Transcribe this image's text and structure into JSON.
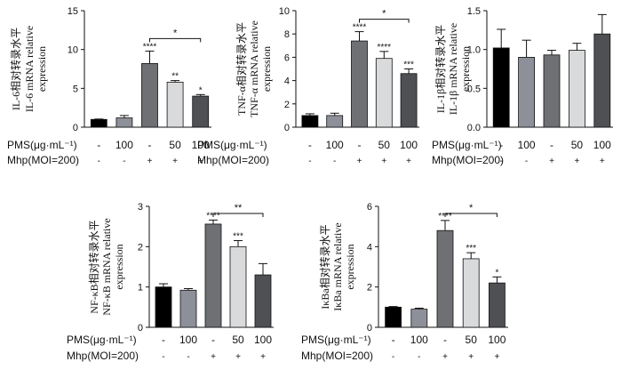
{
  "chart_data": [
    {
      "id": "il6",
      "type": "bar",
      "ylabel_zh": "IL-6相对转录水平",
      "ylabel_en1": "IL-6 mRNA relative",
      "ylabel_en2": "expression",
      "ylim": [
        0,
        15
      ],
      "yticks": [
        0,
        5,
        10,
        15
      ],
      "values": [
        1.0,
        1.2,
        8.2,
        5.8,
        4.0
      ],
      "errors": [
        0.05,
        0.3,
        1.6,
        0.2,
        0.2
      ],
      "sig": [
        "",
        "",
        "****",
        "**",
        "*"
      ],
      "bracket": {
        "from": 2,
        "to": 4,
        "label": "*"
      },
      "row_labels": [
        "PMS(μg·mL⁻¹)",
        "Mhp(MOI=200)"
      ]
    },
    {
      "id": "tnfa",
      "type": "bar",
      "ylabel_zh": "TNF-α相对转录水平",
      "ylabel_en1": "TNF-α mRNA relative",
      "ylabel_en2": "expression",
      "ylim": [
        0,
        10
      ],
      "yticks": [
        0,
        2,
        4,
        6,
        8,
        10
      ],
      "values": [
        1.0,
        1.0,
        7.4,
        5.9,
        4.6
      ],
      "errors": [
        0.15,
        0.2,
        0.8,
        0.6,
        0.4
      ],
      "sig": [
        "",
        "",
        "****",
        "****",
        "***"
      ],
      "bracket": {
        "from": 2,
        "to": 4,
        "label": "*"
      },
      "row_labels": [
        "PMS(μg·mL⁻¹)",
        "Mhp(MOI=200)"
      ]
    },
    {
      "id": "il1b",
      "type": "bar",
      "ylabel_zh": "IL-1β相对转录水平",
      "ylabel_en1": "IL-1β mRNA relative",
      "ylabel_en2": "expression",
      "ylim": [
        0,
        1.5
      ],
      "yticks": [
        0.0,
        0.5,
        1.0,
        1.5
      ],
      "tick_decimals": 1,
      "values": [
        1.02,
        0.9,
        0.93,
        0.99,
        1.2
      ],
      "errors": [
        0.24,
        0.22,
        0.06,
        0.09,
        0.25
      ],
      "sig": [
        "",
        "",
        "",
        "",
        ""
      ],
      "bracket": null,
      "row_labels": [
        "PMS(μg·mL⁻¹)",
        "Mhp(MOI=200)"
      ]
    },
    {
      "id": "nfkb",
      "type": "bar",
      "ylabel_zh": "NF-κB相对转录水平",
      "ylabel_en1": "NF-κB mRNA relative",
      "ylabel_en2": "expression",
      "ylim": [
        0,
        3
      ],
      "yticks": [
        0,
        1,
        2,
        3
      ],
      "values": [
        1.0,
        0.92,
        2.56,
        2.0,
        1.3
      ],
      "errors": [
        0.08,
        0.04,
        0.1,
        0.15,
        0.28
      ],
      "sig": [
        "",
        "",
        "****",
        "***",
        ""
      ],
      "bracket": {
        "from": 2,
        "to": 4,
        "label": "**"
      },
      "row_labels": [
        "PMS(μg·mL⁻¹)",
        "Mhp(MOI=200)"
      ]
    },
    {
      "id": "ikba",
      "type": "bar",
      "ylabel_zh": "IκBa相对转录水平",
      "ylabel_en1": "IκBa mRNA relative",
      "ylabel_en2": "expression",
      "ylim": [
        0,
        6
      ],
      "yticks": [
        0,
        2,
        4,
        6
      ],
      "values": [
        1.0,
        0.9,
        4.8,
        3.4,
        2.2
      ],
      "errors": [
        0.03,
        0.05,
        0.5,
        0.3,
        0.3
      ],
      "sig": [
        "",
        "",
        "****",
        "***",
        "*"
      ],
      "bracket": {
        "from": 2,
        "to": 4,
        "label": "*"
      },
      "row_labels": [
        "PMS(μg·mL⁻¹)",
        "Mhp(MOI=200)"
      ]
    }
  ],
  "groups": {
    "pms": [
      "-",
      "100",
      "-",
      "50",
      "100"
    ],
    "mhp": [
      "-",
      "-",
      "+",
      "+",
      "+"
    ]
  },
  "bar_colors": [
    "#000000",
    "#8d9098",
    "#6e7074",
    "#d8dadc",
    "#4e5053"
  ]
}
